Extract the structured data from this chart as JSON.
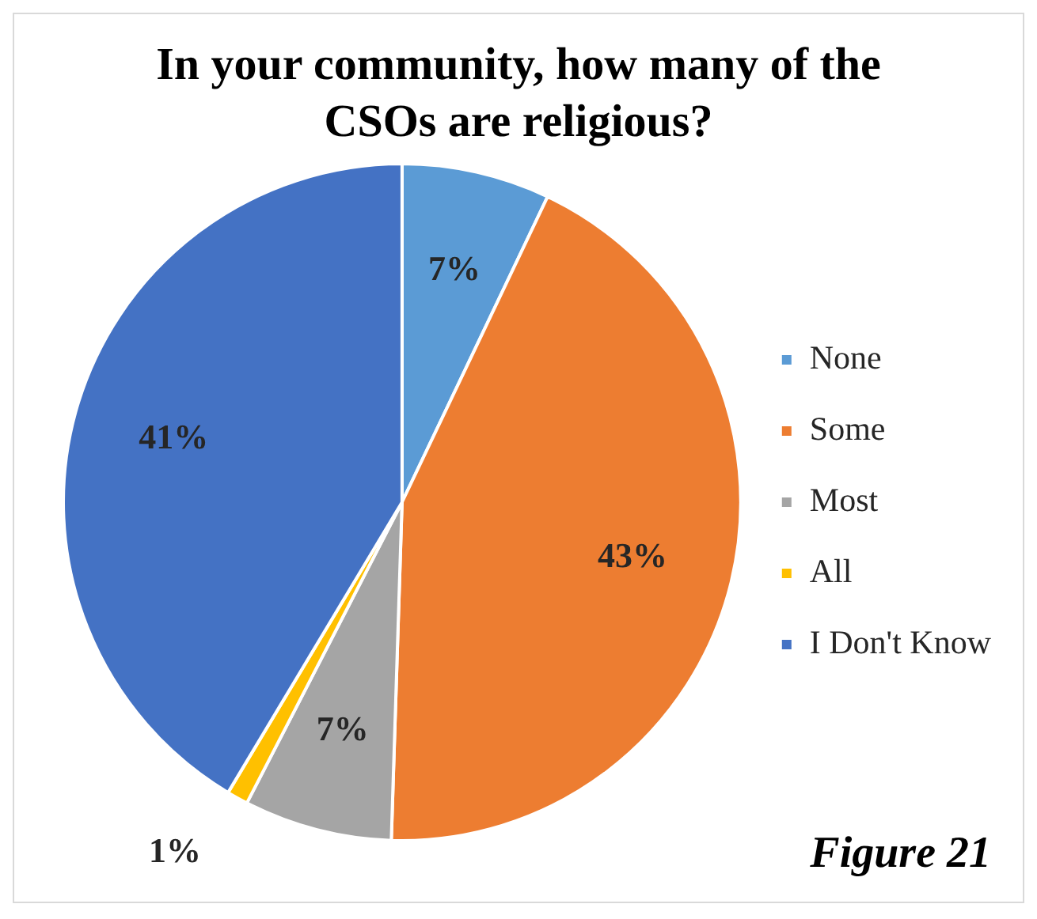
{
  "chart_data": {
    "type": "pie",
    "title": "In your community, how many of the CSOs are religious?",
    "categories": [
      "None",
      "Some",
      "Most",
      "All",
      "I Don't Know"
    ],
    "values": [
      7,
      43,
      7,
      1,
      41
    ],
    "colors": [
      "#5b9bd5",
      "#ed7d31",
      "#a5a5a5",
      "#ffc000",
      "#4472c4"
    ],
    "value_labels": [
      "7%",
      "43%",
      "7%",
      "1%",
      "41%"
    ],
    "legend": "right",
    "annotations": [
      "Figure 21"
    ]
  }
}
